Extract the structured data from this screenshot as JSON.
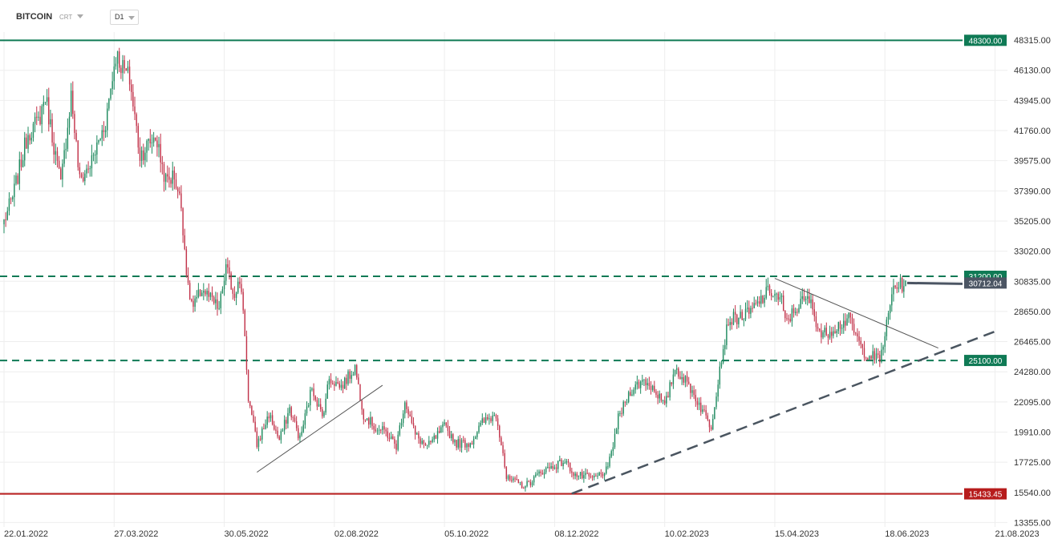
{
  "toolbar": {
    "symbol": "BITCOIN",
    "crt_label": "CRT",
    "timeframe": "D1"
  },
  "colors": {
    "bull": "#1f8a5f",
    "bear": "#c2334a",
    "resistance": "#0f7a55",
    "support": "#b71c1c",
    "trend_dashed": "#4a5560",
    "trend_thin": "#555555",
    "last_price": "#4b5563",
    "grid": "#eeeeee"
  },
  "chart_data": {
    "type": "candlestick",
    "title": "",
    "ylim": [
      12800,
      48900
    ],
    "y_ticks": [
      "48315.00",
      "46130.00",
      "43945.00",
      "41760.00",
      "39575.00",
      "37390.00",
      "35205.00",
      "33020.00",
      "30835.00",
      "28650.00",
      "26465.00",
      "24280.00",
      "22095.00",
      "19910.00",
      "17725.00",
      "15540.00",
      "13355.00"
    ],
    "x_ticks": [
      "22.01.2022",
      "27.03.2022",
      "30.05.2022",
      "02.08.2022",
      "05.10.2022",
      "08.12.2022",
      "10.02.2023",
      "15.04.2023",
      "18.06.2023",
      "21.08.2023"
    ],
    "x_start_date": "2022-01-22",
    "horizontal_levels": [
      {
        "value": 48300,
        "label": "48300.00",
        "style": "solid",
        "color": "resistance"
      },
      {
        "value": 31200,
        "label": "31200.00",
        "style": "dashed",
        "color": "resistance"
      },
      {
        "value": 25100,
        "label": "25100.00",
        "style": "dashed",
        "color": "resistance"
      },
      {
        "value": 15433.45,
        "label": "15433.45",
        "style": "solid",
        "color": "support"
      }
    ],
    "last_price": {
      "value": 30712.04,
      "label": "30712.04"
    },
    "trendlines": [
      {
        "from": [
          "2022-06-18",
          17000
        ],
        "to": [
          "2022-08-30",
          23300
        ],
        "style": "thin"
      },
      {
        "from": [
          "2023-04-15",
          31050
        ],
        "to": [
          "2023-07-19",
          26000
        ],
        "style": "thin"
      },
      {
        "from": [
          "2022-12-18",
          15450
        ],
        "to": [
          "2023-08-21",
          27200
        ],
        "style": "dashed"
      }
    ],
    "anchors": [
      [
        "2022-01-22",
        35200
      ],
      [
        "2022-01-27",
        36900
      ],
      [
        "2022-02-05",
        41600
      ],
      [
        "2022-02-11",
        42400
      ],
      [
        "2022-02-15",
        44300
      ],
      [
        "2022-02-24",
        37800
      ],
      [
        "2022-03-02",
        44400
      ],
      [
        "2022-03-07",
        38100
      ],
      [
        "2022-03-14",
        39500
      ],
      [
        "2022-03-22",
        42400
      ],
      [
        "2022-03-28",
        47300
      ],
      [
        "2022-04-01",
        46300
      ],
      [
        "2022-04-05",
        45500
      ],
      [
        "2022-04-11",
        40000
      ],
      [
        "2022-04-20",
        41400
      ],
      [
        "2022-04-26",
        38100
      ],
      [
        "2022-05-01",
        38500
      ],
      [
        "2022-05-05",
        36300
      ],
      [
        "2022-05-09",
        30200
      ],
      [
        "2022-05-12",
        28900
      ],
      [
        "2022-05-17",
        30300
      ],
      [
        "2022-05-27",
        28800
      ],
      [
        "2022-05-31",
        31800
      ],
      [
        "2022-06-05",
        29800
      ],
      [
        "2022-06-07",
        31200
      ],
      [
        "2022-06-10",
        29000
      ],
      [
        "2022-06-13",
        22400
      ],
      [
        "2022-06-18",
        19000
      ],
      [
        "2022-06-25",
        21200
      ],
      [
        "2022-07-01",
        19300
      ],
      [
        "2022-07-07",
        21600
      ],
      [
        "2022-07-13",
        19400
      ],
      [
        "2022-07-20",
        23200
      ],
      [
        "2022-07-26",
        21000
      ],
      [
        "2022-07-30",
        23800
      ],
      [
        "2022-08-06",
        23200
      ],
      [
        "2022-08-14",
        24600
      ],
      [
        "2022-08-19",
        21200
      ],
      [
        "2022-08-26",
        20200
      ],
      [
        "2022-09-01",
        19900
      ],
      [
        "2022-09-07",
        18900
      ],
      [
        "2022-09-12",
        22200
      ],
      [
        "2022-09-18",
        19700
      ],
      [
        "2022-09-25",
        18800
      ],
      [
        "2022-10-05",
        20300
      ],
      [
        "2022-10-12",
        19100
      ],
      [
        "2022-10-20",
        19100
      ],
      [
        "2022-10-27",
        20600
      ],
      [
        "2022-11-04",
        21200
      ],
      [
        "2022-11-08",
        18500
      ],
      [
        "2022-11-10",
        16500
      ],
      [
        "2022-11-21",
        16000
      ],
      [
        "2022-12-01",
        17100
      ],
      [
        "2022-12-14",
        17800
      ],
      [
        "2022-12-20",
        16800
      ],
      [
        "2022-12-31",
        16550
      ],
      [
        "2023-01-08",
        17200
      ],
      [
        "2023-01-14",
        20900
      ],
      [
        "2023-01-21",
        22900
      ],
      [
        "2023-01-29",
        23700
      ],
      [
        "2023-02-05",
        22900
      ],
      [
        "2023-02-10",
        21700
      ],
      [
        "2023-02-16",
        24600
      ],
      [
        "2023-02-25",
        23100
      ],
      [
        "2023-03-09",
        20300
      ],
      [
        "2023-03-14",
        24600
      ],
      [
        "2023-03-19",
        28000
      ],
      [
        "2023-03-31",
        28500
      ],
      [
        "2023-04-12",
        30200
      ],
      [
        "2023-04-19",
        29400
      ],
      [
        "2023-04-21",
        27800
      ],
      [
        "2023-04-30",
        29300
      ],
      [
        "2023-05-05",
        29500
      ],
      [
        "2023-05-12",
        26900
      ],
      [
        "2023-05-28",
        28100
      ],
      [
        "2023-06-05",
        25800
      ],
      [
        "2023-06-15",
        25100
      ],
      [
        "2023-06-20",
        28300
      ],
      [
        "2023-06-23",
        30500
      ],
      [
        "2023-06-30",
        30600
      ]
    ]
  }
}
